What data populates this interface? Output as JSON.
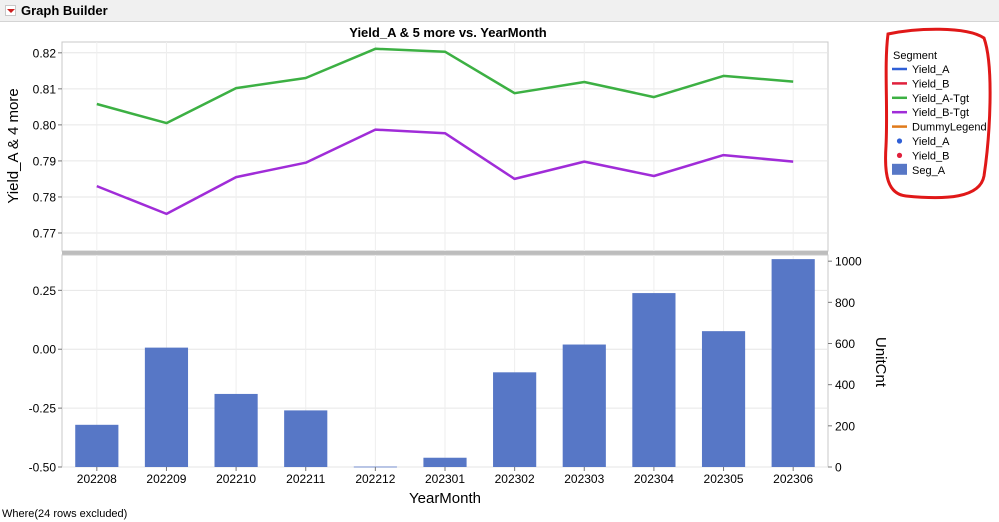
{
  "window": {
    "title": "Graph Builder"
  },
  "chart_data": [
    {
      "type": "line",
      "title": "Yield_A & 5 more vs. YearMonth",
      "ylabel": "Yield_A & 4 more",
      "ylim": [
        0.765,
        0.823
      ],
      "y_ticks": [
        "0.77",
        "0.78",
        "0.79",
        "0.80",
        "0.81",
        "0.82"
      ],
      "categories": [
        "202208",
        "202209",
        "202210",
        "202211",
        "202212",
        "202301",
        "202302",
        "202303",
        "202304",
        "202305",
        "202306"
      ],
      "series": [
        {
          "name": "Yield_A-Tgt",
          "color": "#3cb043",
          "values": [
            0.8058,
            0.8005,
            0.8102,
            0.813,
            0.8211,
            0.8203,
            0.8088,
            0.8119,
            0.8077,
            0.8136,
            0.812
          ]
        },
        {
          "name": "Yield_B-Tgt",
          "color": "#a02cd8",
          "values": [
            0.783,
            0.7753,
            0.7855,
            0.7895,
            0.7987,
            0.7977,
            0.785,
            0.7898,
            0.7858,
            0.7916,
            0.7898
          ]
        }
      ],
      "grid": true
    },
    {
      "type": "bar",
      "xlabel": "YearMonth",
      "ylabel": "UnitCnt",
      "categories": [
        "202208",
        "202209",
        "202210",
        "202211",
        "202212",
        "202301",
        "202302",
        "202303",
        "202304",
        "202305",
        "202306"
      ],
      "left_axis": {
        "ylim": [
          -0.5,
          0.4
        ],
        "ticks": [
          "-0.50",
          "-0.25",
          "0.00",
          "0.25"
        ]
      },
      "right_axis": {
        "ylim": [
          0,
          1030
        ],
        "ticks": [
          "0",
          "200",
          "400",
          "600",
          "800",
          "1000"
        ]
      },
      "series": [
        {
          "name": "Seg_A",
          "color": "#5777c6",
          "values": [
            205,
            580,
            355,
            275,
            2,
            45,
            460,
            595,
            845,
            660,
            1010
          ]
        }
      ],
      "grid": true
    }
  ],
  "legend": {
    "title": "Segment",
    "items": [
      {
        "label": "Yield_A",
        "kind": "line",
        "color": "#2f5fd6"
      },
      {
        "label": "Yield_B",
        "kind": "line",
        "color": "#e0203c"
      },
      {
        "label": "Yield_A-Tgt",
        "kind": "line",
        "color": "#3cb043"
      },
      {
        "label": "Yield_B-Tgt",
        "kind": "line",
        "color": "#a02cd8"
      },
      {
        "label": "DummyLegend",
        "kind": "line",
        "color": "#e07a1a"
      },
      {
        "label": "Yield_A",
        "kind": "dot",
        "color": "#2f5fd6"
      },
      {
        "label": "Yield_B",
        "kind": "dot",
        "color": "#e0203c"
      },
      {
        "label": "Seg_A",
        "kind": "bar",
        "color": "#5777c6"
      }
    ]
  },
  "footer": {
    "text": "Where(24 rows excluded)"
  }
}
